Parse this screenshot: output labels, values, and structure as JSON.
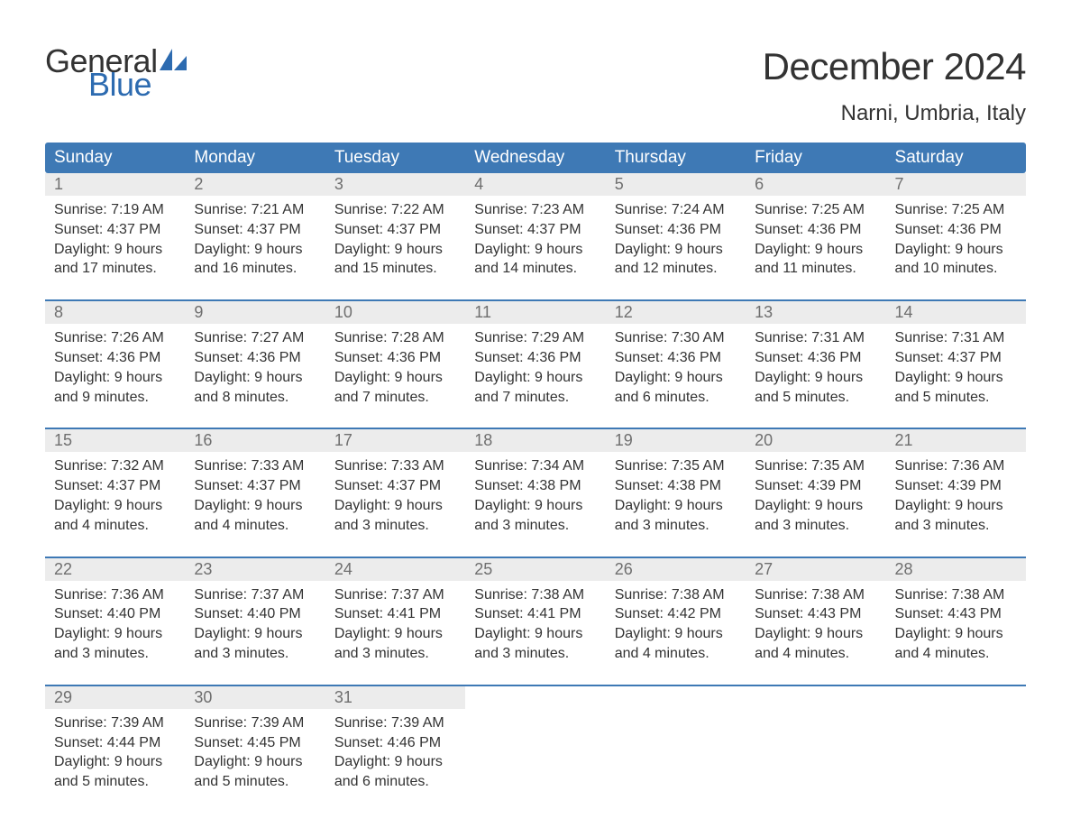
{
  "logo": {
    "text_general": "General",
    "text_blue": "Blue",
    "sail_color": "#2d6bb0",
    "general_color": "#333333",
    "blue_color": "#2d6bb0"
  },
  "title": "December 2024",
  "location": "Narni, Umbria, Italy",
  "colors": {
    "header_bg": "#3e79b5",
    "header_text": "#ffffff",
    "daynum_bg": "#ececec",
    "daynum_text": "#6f6f6f",
    "body_text": "#333333",
    "row_border": "#3e79b5",
    "page_bg": "#ffffff"
  },
  "day_headers": [
    "Sunday",
    "Monday",
    "Tuesday",
    "Wednesday",
    "Thursday",
    "Friday",
    "Saturday"
  ],
  "weeks": [
    [
      {
        "n": "1",
        "sr": "Sunrise: 7:19 AM",
        "ss": "Sunset: 4:37 PM",
        "d1": "Daylight: 9 hours",
        "d2": "and 17 minutes."
      },
      {
        "n": "2",
        "sr": "Sunrise: 7:21 AM",
        "ss": "Sunset: 4:37 PM",
        "d1": "Daylight: 9 hours",
        "d2": "and 16 minutes."
      },
      {
        "n": "3",
        "sr": "Sunrise: 7:22 AM",
        "ss": "Sunset: 4:37 PM",
        "d1": "Daylight: 9 hours",
        "d2": "and 15 minutes."
      },
      {
        "n": "4",
        "sr": "Sunrise: 7:23 AM",
        "ss": "Sunset: 4:37 PM",
        "d1": "Daylight: 9 hours",
        "d2": "and 14 minutes."
      },
      {
        "n": "5",
        "sr": "Sunrise: 7:24 AM",
        "ss": "Sunset: 4:36 PM",
        "d1": "Daylight: 9 hours",
        "d2": "and 12 minutes."
      },
      {
        "n": "6",
        "sr": "Sunrise: 7:25 AM",
        "ss": "Sunset: 4:36 PM",
        "d1": "Daylight: 9 hours",
        "d2": "and 11 minutes."
      },
      {
        "n": "7",
        "sr": "Sunrise: 7:25 AM",
        "ss": "Sunset: 4:36 PM",
        "d1": "Daylight: 9 hours",
        "d2": "and 10 minutes."
      }
    ],
    [
      {
        "n": "8",
        "sr": "Sunrise: 7:26 AM",
        "ss": "Sunset: 4:36 PM",
        "d1": "Daylight: 9 hours",
        "d2": "and 9 minutes."
      },
      {
        "n": "9",
        "sr": "Sunrise: 7:27 AM",
        "ss": "Sunset: 4:36 PM",
        "d1": "Daylight: 9 hours",
        "d2": "and 8 minutes."
      },
      {
        "n": "10",
        "sr": "Sunrise: 7:28 AM",
        "ss": "Sunset: 4:36 PM",
        "d1": "Daylight: 9 hours",
        "d2": "and 7 minutes."
      },
      {
        "n": "11",
        "sr": "Sunrise: 7:29 AM",
        "ss": "Sunset: 4:36 PM",
        "d1": "Daylight: 9 hours",
        "d2": "and 7 minutes."
      },
      {
        "n": "12",
        "sr": "Sunrise: 7:30 AM",
        "ss": "Sunset: 4:36 PM",
        "d1": "Daylight: 9 hours",
        "d2": "and 6 minutes."
      },
      {
        "n": "13",
        "sr": "Sunrise: 7:31 AM",
        "ss": "Sunset: 4:36 PM",
        "d1": "Daylight: 9 hours",
        "d2": "and 5 minutes."
      },
      {
        "n": "14",
        "sr": "Sunrise: 7:31 AM",
        "ss": "Sunset: 4:37 PM",
        "d1": "Daylight: 9 hours",
        "d2": "and 5 minutes."
      }
    ],
    [
      {
        "n": "15",
        "sr": "Sunrise: 7:32 AM",
        "ss": "Sunset: 4:37 PM",
        "d1": "Daylight: 9 hours",
        "d2": "and 4 minutes."
      },
      {
        "n": "16",
        "sr": "Sunrise: 7:33 AM",
        "ss": "Sunset: 4:37 PM",
        "d1": "Daylight: 9 hours",
        "d2": "and 4 minutes."
      },
      {
        "n": "17",
        "sr": "Sunrise: 7:33 AM",
        "ss": "Sunset: 4:37 PM",
        "d1": "Daylight: 9 hours",
        "d2": "and 3 minutes."
      },
      {
        "n": "18",
        "sr": "Sunrise: 7:34 AM",
        "ss": "Sunset: 4:38 PM",
        "d1": "Daylight: 9 hours",
        "d2": "and 3 minutes."
      },
      {
        "n": "19",
        "sr": "Sunrise: 7:35 AM",
        "ss": "Sunset: 4:38 PM",
        "d1": "Daylight: 9 hours",
        "d2": "and 3 minutes."
      },
      {
        "n": "20",
        "sr": "Sunrise: 7:35 AM",
        "ss": "Sunset: 4:39 PM",
        "d1": "Daylight: 9 hours",
        "d2": "and 3 minutes."
      },
      {
        "n": "21",
        "sr": "Sunrise: 7:36 AM",
        "ss": "Sunset: 4:39 PM",
        "d1": "Daylight: 9 hours",
        "d2": "and 3 minutes."
      }
    ],
    [
      {
        "n": "22",
        "sr": "Sunrise: 7:36 AM",
        "ss": "Sunset: 4:40 PM",
        "d1": "Daylight: 9 hours",
        "d2": "and 3 minutes."
      },
      {
        "n": "23",
        "sr": "Sunrise: 7:37 AM",
        "ss": "Sunset: 4:40 PM",
        "d1": "Daylight: 9 hours",
        "d2": "and 3 minutes."
      },
      {
        "n": "24",
        "sr": "Sunrise: 7:37 AM",
        "ss": "Sunset: 4:41 PM",
        "d1": "Daylight: 9 hours",
        "d2": "and 3 minutes."
      },
      {
        "n": "25",
        "sr": "Sunrise: 7:38 AM",
        "ss": "Sunset: 4:41 PM",
        "d1": "Daylight: 9 hours",
        "d2": "and 3 minutes."
      },
      {
        "n": "26",
        "sr": "Sunrise: 7:38 AM",
        "ss": "Sunset: 4:42 PM",
        "d1": "Daylight: 9 hours",
        "d2": "and 4 minutes."
      },
      {
        "n": "27",
        "sr": "Sunrise: 7:38 AM",
        "ss": "Sunset: 4:43 PM",
        "d1": "Daylight: 9 hours",
        "d2": "and 4 minutes."
      },
      {
        "n": "28",
        "sr": "Sunrise: 7:38 AM",
        "ss": "Sunset: 4:43 PM",
        "d1": "Daylight: 9 hours",
        "d2": "and 4 minutes."
      }
    ],
    [
      {
        "n": "29",
        "sr": "Sunrise: 7:39 AM",
        "ss": "Sunset: 4:44 PM",
        "d1": "Daylight: 9 hours",
        "d2": "and 5 minutes."
      },
      {
        "n": "30",
        "sr": "Sunrise: 7:39 AM",
        "ss": "Sunset: 4:45 PM",
        "d1": "Daylight: 9 hours",
        "d2": "and 5 minutes."
      },
      {
        "n": "31",
        "sr": "Sunrise: 7:39 AM",
        "ss": "Sunset: 4:46 PM",
        "d1": "Daylight: 9 hours",
        "d2": "and 6 minutes."
      },
      null,
      null,
      null,
      null
    ]
  ]
}
